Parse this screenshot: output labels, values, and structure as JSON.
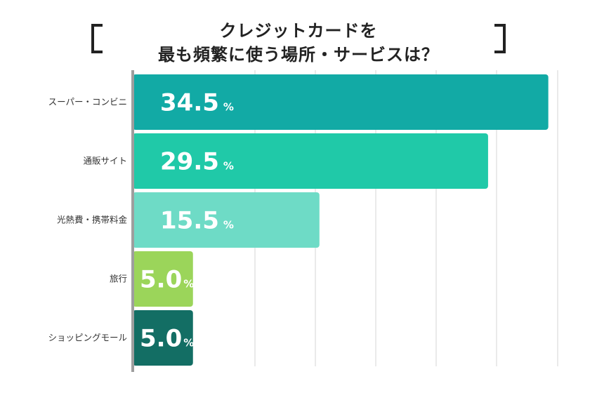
{
  "title": {
    "line1": "クレジットカードを",
    "line2": "最も頻繁に使う場所・サービスは？"
  },
  "colors": {
    "axis": "#9e9e9e",
    "grid": "#d6d6d6",
    "text": "#222222"
  },
  "chart_data": {
    "type": "bar",
    "orientation": "horizontal",
    "title": "クレジットカードを最も頻繁に使う場所・サービスは？",
    "categories": [
      "スーパー・コンビニ",
      "通販サイト",
      "光熱費・携帯料金",
      "旅行",
      "ショッピングモール"
    ],
    "values": [
      34.5,
      29.5,
      15.5,
      5.0,
      5.0
    ],
    "value_labels": [
      "34.5",
      "29.5",
      "15.5",
      "5.0",
      "5.0"
    ],
    "unit": "%",
    "bar_colors": [
      "#12aaa5",
      "#20c9a8",
      "#6edbc6",
      "#9bd55a",
      "#136e64"
    ],
    "xlim": [
      0,
      35
    ],
    "grid": true,
    "xlabel": "",
    "ylabel": ""
  }
}
